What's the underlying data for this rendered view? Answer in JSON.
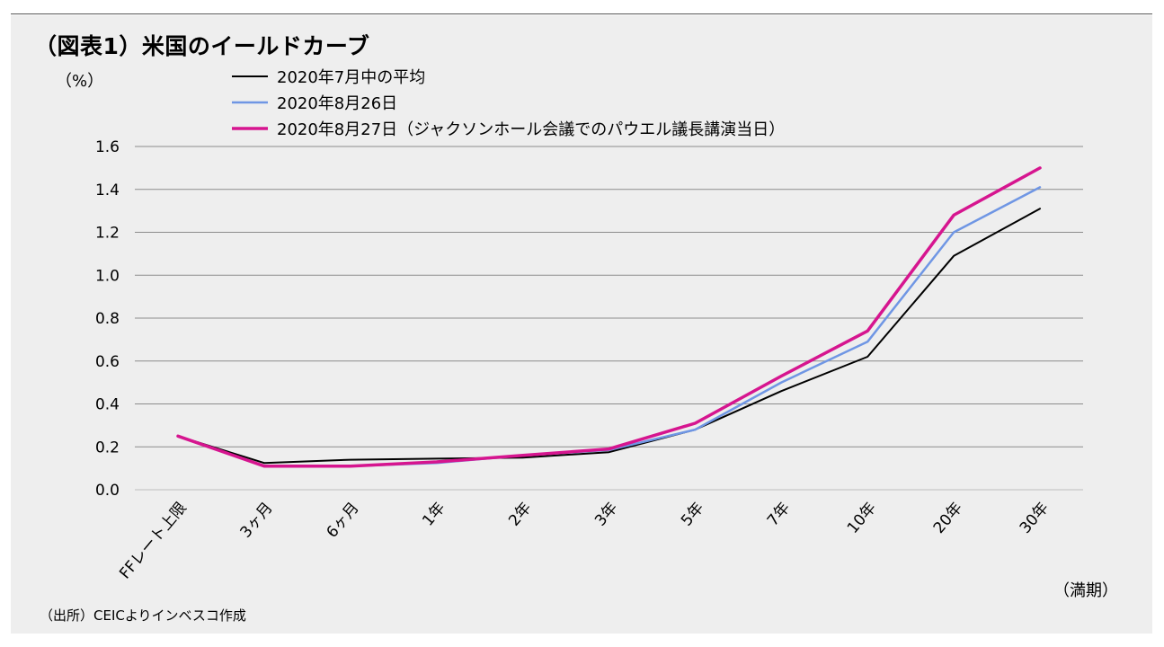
{
  "title": "（図表1）米国のイールドカーブ",
  "source": "（出所）CEICよりインベスコ作成",
  "chart_data": {
    "type": "line",
    "title": "（図表1）米国のイールドカーブ",
    "ylabel": "（%）",
    "xlabel": "（満期）",
    "categories": [
      "FFレート上限",
      "3ヶ月",
      "6ヶ月",
      "1年",
      "2年",
      "3年",
      "5年",
      "7年",
      "10年",
      "20年",
      "30年"
    ],
    "ylim": [
      0,
      1.6
    ],
    "yticks": [
      "0.0",
      "0.2",
      "0.4",
      "0.6",
      "0.8",
      "1.0",
      "1.2",
      "1.4",
      "1.6"
    ],
    "grid": true,
    "legend_position": "top-left",
    "series": [
      {
        "name": "2020年7月中の平均",
        "color": "#000000",
        "width": 2,
        "values": [
          0.25,
          0.125,
          0.14,
          0.145,
          0.15,
          0.175,
          0.28,
          0.46,
          0.62,
          1.09,
          1.31
        ]
      },
      {
        "name": "2020年8月26日",
        "color": "#6f96e4",
        "width": 2.5,
        "values": [
          0.25,
          0.11,
          0.11,
          0.125,
          0.16,
          0.185,
          0.28,
          0.5,
          0.69,
          1.2,
          1.41
        ]
      },
      {
        "name": "2020年8月27日（ジャクソンホール会議でのパウエル議長講演当日）",
        "color": "#d6158f",
        "width": 3.5,
        "values": [
          0.25,
          0.11,
          0.11,
          0.13,
          0.16,
          0.19,
          0.31,
          0.53,
          0.74,
          1.28,
          1.5
        ]
      }
    ]
  }
}
